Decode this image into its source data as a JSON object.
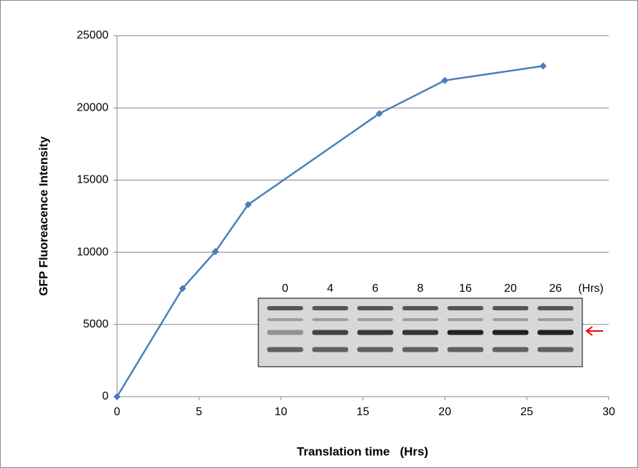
{
  "chart_data": {
    "type": "line",
    "x_label": "Translation time   (Hrs)",
    "y_label": "GFP Fluoreacence Intensity",
    "x": [
      0,
      4,
      6,
      8,
      16,
      20,
      26
    ],
    "values": [
      0,
      7500,
      10050,
      13300,
      19600,
      21900,
      22900
    ],
    "color": "#4a7ebb",
    "xlim": [
      0,
      30
    ],
    "xticks": [
      0,
      5,
      10,
      15,
      20,
      25,
      30
    ],
    "ylim": [
      0,
      25000
    ],
    "yticks": [
      0,
      5000,
      10000,
      15000,
      20000,
      25000
    ],
    "grid": true,
    "inset": {
      "lane_labels": [
        "0",
        "4",
        "6",
        "8",
        "16",
        "20",
        "26"
      ],
      "unit_label": "(Hrs)"
    }
  }
}
